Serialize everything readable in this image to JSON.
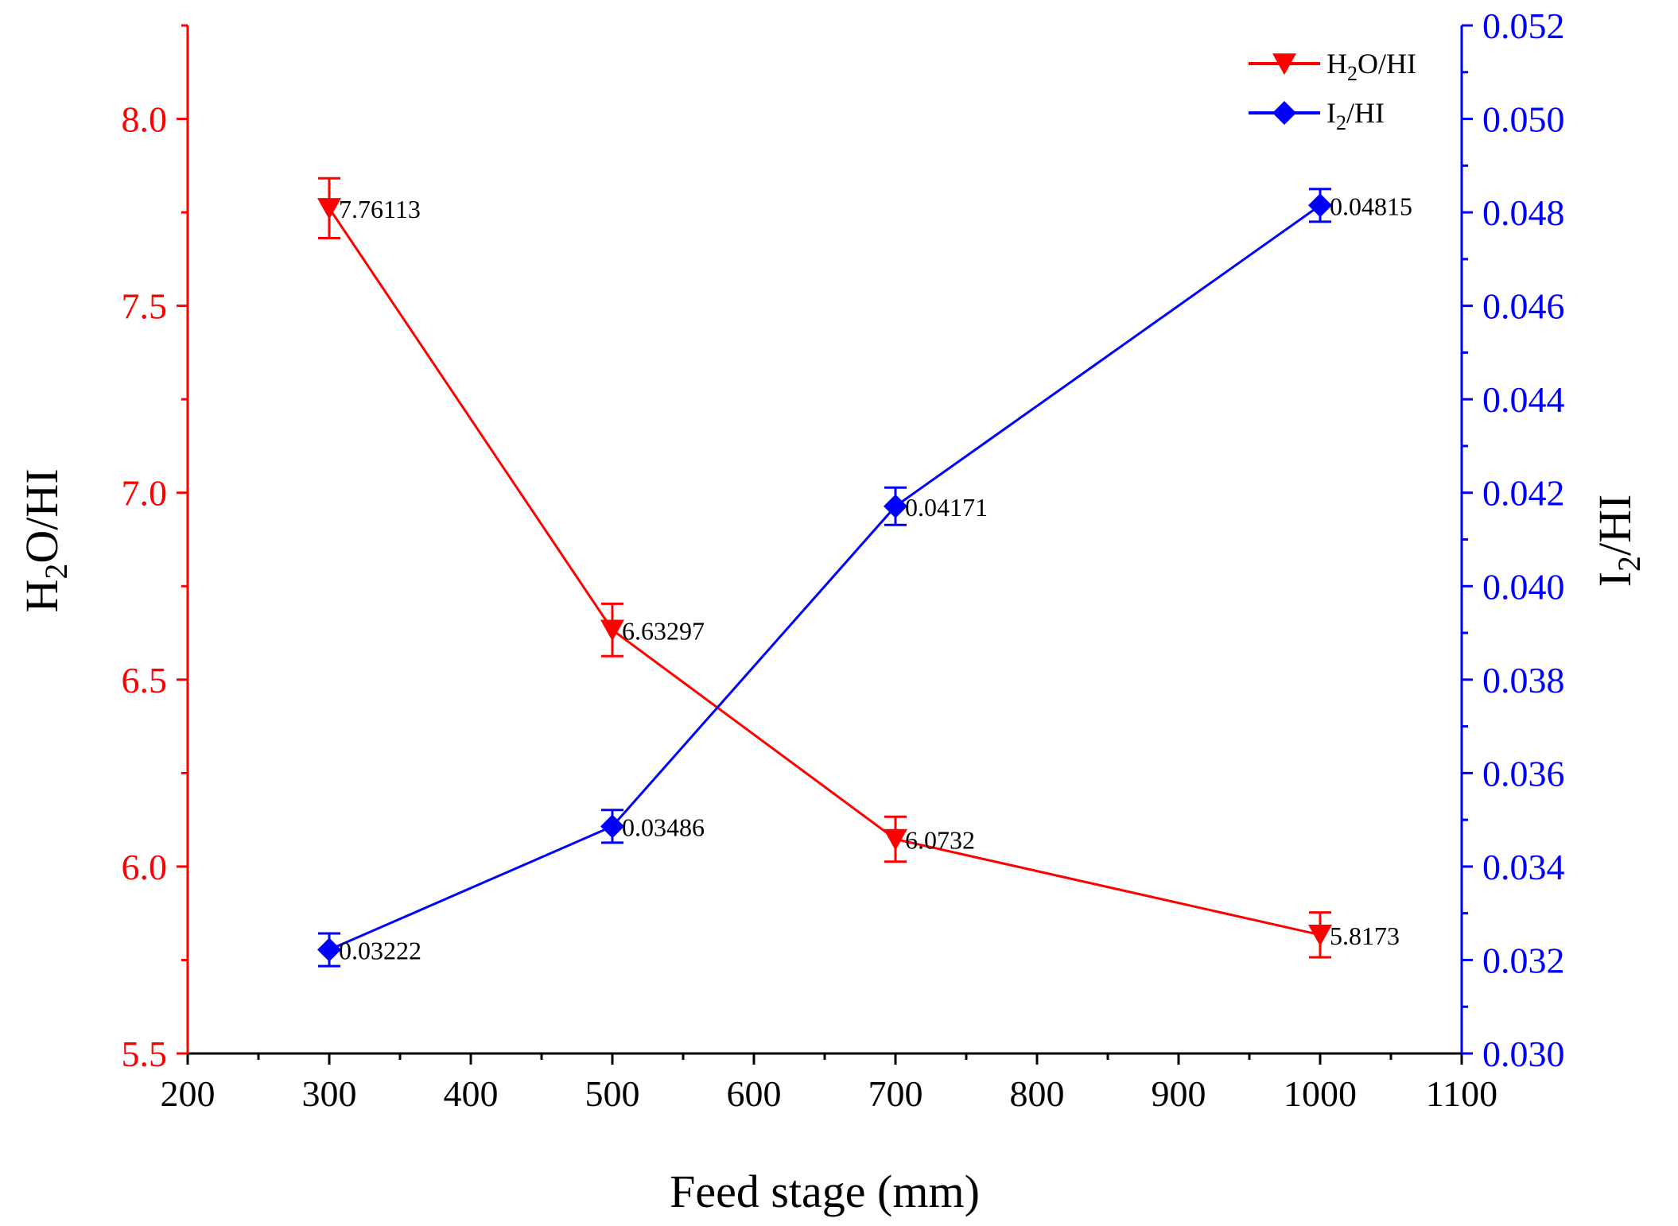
{
  "chart_data": {
    "type": "line",
    "xlabel": "Feed stage (mm)",
    "xlim": [
      200,
      1100
    ],
    "x_ticks": [
      "200",
      "300",
      "400",
      "500",
      "600",
      "700",
      "800",
      "900",
      "1000",
      "1100"
    ],
    "y_left": {
      "label_main": "H",
      "label_sub": "2",
      "label_rest": "O/HI",
      "lim": [
        5.5,
        8.25
      ],
      "ticks": [
        "5.5",
        "6.0",
        "6.5",
        "7.0",
        "7.5",
        "8.0"
      ],
      "color": "#ff0000"
    },
    "y_right": {
      "label_main": "I",
      "label_sub": "2",
      "label_rest": "/HI",
      "lim": [
        0.03,
        0.052
      ],
      "ticks": [
        "0.030",
        "0.032",
        "0.034",
        "0.036",
        "0.038",
        "0.040",
        "0.042",
        "0.044",
        "0.046",
        "0.048",
        "0.050",
        "0.052"
      ],
      "color": "#0000ff"
    },
    "series": [
      {
        "name_main": "H",
        "name_sub": "2",
        "name_rest": "O/HI",
        "axis": "left",
        "marker": "triangle-down",
        "color": "#ff0000",
        "x": [
          300,
          500,
          700,
          1000
        ],
        "y": [
          7.76113,
          6.63297,
          6.0732,
          5.8173
        ],
        "error": [
          0.08,
          0.07,
          0.06,
          0.06
        ],
        "labels": [
          "7.76113",
          "6.63297",
          "6.0732",
          "5.8173"
        ]
      },
      {
        "name_main": "I",
        "name_sub": "2",
        "name_rest": "/HI",
        "axis": "right",
        "marker": "diamond",
        "color": "#0000ff",
        "x": [
          300,
          500,
          700,
          1000
        ],
        "y": [
          0.03222,
          0.03486,
          0.04171,
          0.04815
        ],
        "error": [
          0.00035,
          0.00035,
          0.0004,
          0.00035
        ],
        "labels": [
          "0.03222",
          "0.03486",
          "0.04171",
          "0.04815"
        ]
      }
    ],
    "legend": "top-right",
    "grid": false
  }
}
